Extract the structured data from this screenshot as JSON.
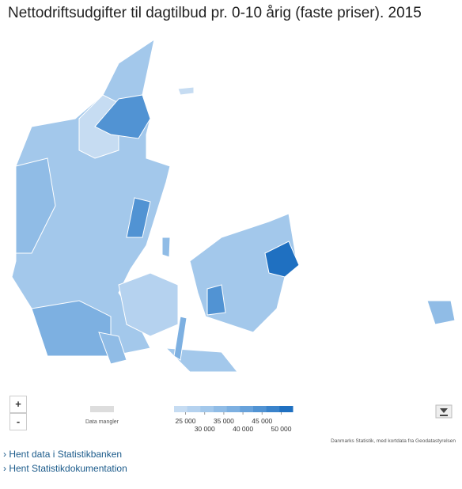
{
  "title": "Nettodriftsudgifter til dagtilbud pr. 0-10 årig (faste priser). 2015",
  "zoom": {
    "in": "+",
    "out": "-"
  },
  "legend": {
    "missing_label": "Data mangler",
    "lim": [
      22000,
      53000
    ],
    "ticks": [
      {
        "value": 25000,
        "label": "25 000"
      },
      {
        "value": 30000,
        "label": "30 000"
      },
      {
        "value": 35000,
        "label": "35 000"
      },
      {
        "value": 40000,
        "label": "40 000"
      },
      {
        "value": 45000,
        "label": "45 000"
      },
      {
        "value": 50000,
        "label": "50 000"
      }
    ],
    "colors": [
      "#c6dcf2",
      "#b5d2ef",
      "#a3c8eb",
      "#90bce6",
      "#7db0e1",
      "#68a2db",
      "#5193d3",
      "#3a83cb",
      "#1f70c1"
    ]
  },
  "source": "Danmarks Statistik, med kortdata fra Geodatastyrelsen",
  "links": [
    "› Hent data i Statistikbanken",
    "› Hent Statistikdokumentation"
  ]
}
